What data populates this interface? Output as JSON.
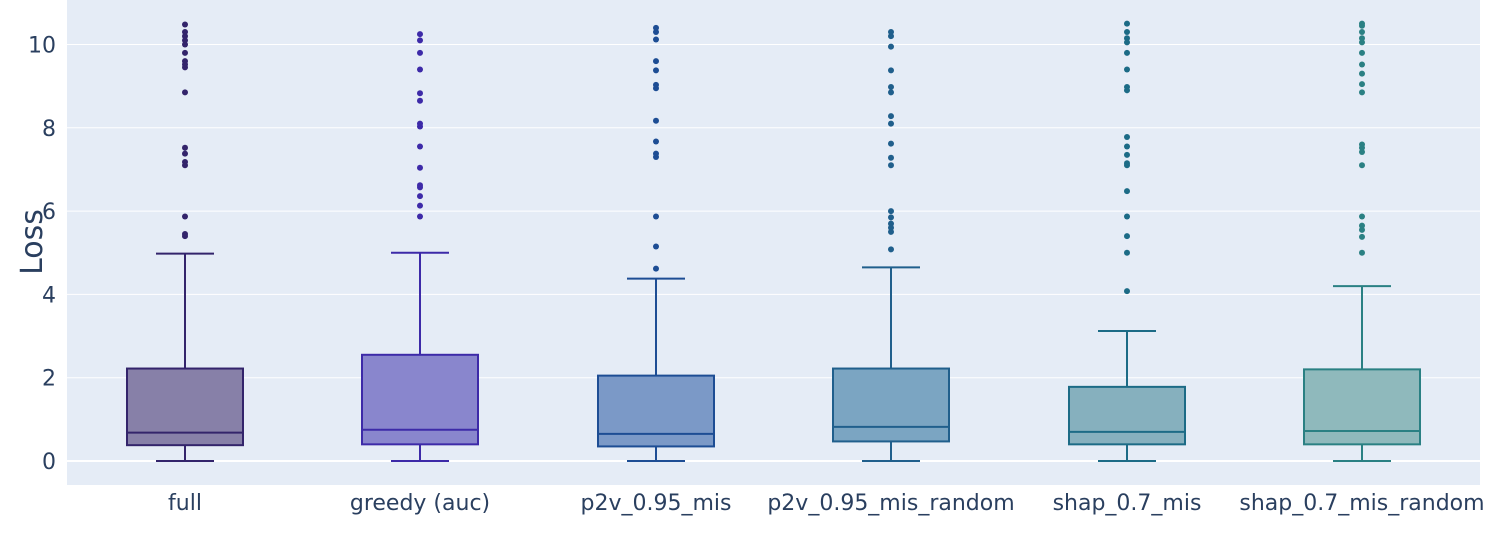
{
  "chart_data": {
    "type": "box",
    "title": "",
    "xlabel": "",
    "ylabel": "Loss",
    "ylim": [
      -0.6,
      11.0
    ],
    "y_ticks": [
      0,
      2,
      4,
      6,
      8,
      10
    ],
    "grid": true,
    "background": "#e5ecf6",
    "categories": [
      "full",
      "greedy (auc)",
      "p2v_0.95_mis",
      "p2v_0.95_mis_random",
      "shap_0.7_mis",
      "shap_0.7_mis_random"
    ],
    "boxes": [
      {
        "name": "full",
        "color": "#33246b",
        "fill": "#8780a8",
        "min": 0,
        "q1": 0.38,
        "median": 0.68,
        "q3": 2.22,
        "max": 4.98,
        "outliers": [
          5.4,
          5.45,
          5.87,
          7.1,
          7.18,
          7.38,
          7.52,
          8.85,
          9.45,
          9.52,
          9.6,
          9.8,
          10.0,
          10.1,
          10.2,
          10.3,
          10.48
        ]
      },
      {
        "name": "greedy (auc)",
        "color": "#3d2aa8",
        "fill": "#8986cd",
        "min": 0,
        "q1": 0.4,
        "median": 0.75,
        "q3": 2.55,
        "max": 5.0,
        "outliers": [
          5.87,
          6.13,
          6.36,
          6.57,
          6.62,
          7.04,
          7.55,
          8.03,
          8.1,
          8.65,
          8.83,
          9.4,
          9.8,
          10.1,
          10.25
        ]
      },
      {
        "name": "p2v_0.95_mis",
        "color": "#1d4d94",
        "fill": "#7b99c7",
        "min": 0,
        "q1": 0.35,
        "median": 0.65,
        "q3": 2.05,
        "max": 4.38,
        "outliers": [
          4.62,
          5.15,
          5.87,
          7.3,
          7.38,
          7.67,
          8.17,
          8.95,
          9.03,
          9.38,
          9.6,
          10.12,
          10.3,
          10.4
        ]
      },
      {
        "name": "p2v_0.95_mis_random",
        "color": "#205f8c",
        "fill": "#7ba5c2",
        "min": 0,
        "q1": 0.47,
        "median": 0.82,
        "q3": 2.22,
        "max": 4.65,
        "outliers": [
          5.08,
          5.5,
          5.6,
          5.7,
          5.85,
          6.0,
          7.1,
          7.28,
          7.62,
          8.1,
          8.28,
          8.85,
          8.98,
          9.38,
          9.95,
          10.2,
          10.3
        ]
      },
      {
        "name": "shap_0.7_mis",
        "color": "#1c6b86",
        "fill": "#86b0be",
        "min": 0,
        "q1": 0.4,
        "median": 0.7,
        "q3": 1.78,
        "max": 3.12,
        "outliers": [
          4.08,
          5.0,
          5.4,
          5.87,
          6.48,
          7.1,
          7.15,
          7.35,
          7.55,
          7.78,
          8.9,
          8.98,
          9.4,
          9.8,
          10.05,
          10.15,
          10.3,
          10.5
        ]
      },
      {
        "name": "shap_0.7_mis_random",
        "color": "#2a8083",
        "fill": "#8fb9bc",
        "min": 0,
        "q1": 0.4,
        "median": 0.72,
        "q3": 2.2,
        "max": 4.2,
        "outliers": [
          5.0,
          5.38,
          5.55,
          5.65,
          5.87,
          7.1,
          7.42,
          7.52,
          7.6,
          8.85,
          9.05,
          9.3,
          9.52,
          9.8,
          10.05,
          10.15,
          10.3,
          10.45,
          10.5
        ]
      }
    ]
  }
}
